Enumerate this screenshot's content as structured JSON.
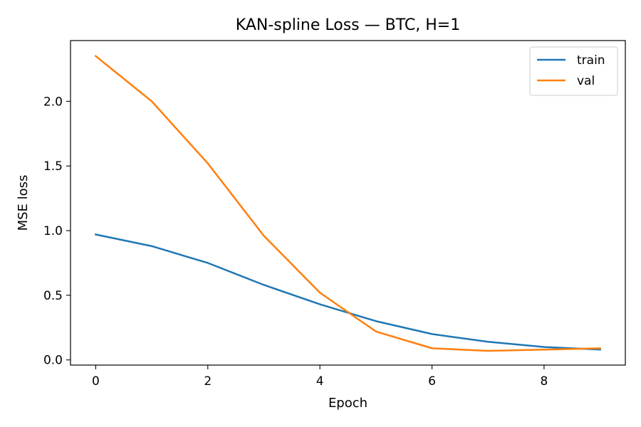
{
  "chart_data": {
    "type": "line",
    "title": "KAN-spline Loss — BTC, H=1",
    "xlabel": "Epoch",
    "ylabel": "MSE loss",
    "x": [
      0,
      1,
      2,
      3,
      4,
      5,
      6,
      7,
      8,
      9
    ],
    "xlim": [
      -0.45,
      9.45
    ],
    "ylim": [
      -0.04,
      2.47
    ],
    "xticks": [
      0,
      2,
      4,
      6,
      8
    ],
    "xtick_labels": [
      "0",
      "2",
      "4",
      "6",
      "8"
    ],
    "yticks": [
      0.0,
      0.5,
      1.0,
      1.5,
      2.0
    ],
    "ytick_labels": [
      "0.0",
      "0.5",
      "1.0",
      "1.5",
      "2.0"
    ],
    "grid": false,
    "legend_position": "top-right",
    "series": [
      {
        "name": "train",
        "color": "#1f77b4",
        "values": [
          0.97,
          0.88,
          0.75,
          0.58,
          0.43,
          0.3,
          0.2,
          0.14,
          0.1,
          0.08
        ]
      },
      {
        "name": "val",
        "color": "#ff7f0e",
        "values": [
          2.35,
          2.0,
          1.52,
          0.96,
          0.52,
          0.22,
          0.09,
          0.07,
          0.08,
          0.09
        ]
      }
    ]
  }
}
